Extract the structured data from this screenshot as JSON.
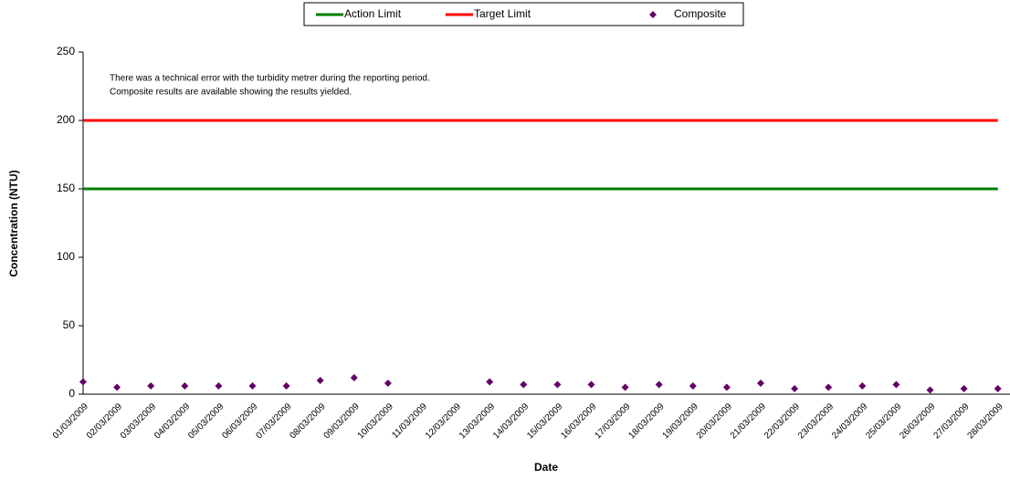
{
  "chart_data": {
    "type": "line",
    "annotation": [
      "There was a technical error with the turbidity metrer during the reporting period.",
      "Composite results are available showing the results yielded."
    ],
    "x_label": "Date",
    "y_label": "Concentration (NTU)",
    "categories": [
      "01/03/2009",
      "02/03/2009",
      "03/03/2009",
      "04/03/2009",
      "05/03/2009",
      "06/03/2009",
      "07/03/2009",
      "08/03/2009",
      "09/03/2009",
      "10/03/2009",
      "11/03/2009",
      "12/03/2009",
      "13/03/2009",
      "14/03/2009",
      "15/03/2009",
      "16/03/2009",
      "17/03/2009",
      "18/03/2009",
      "19/03/2009",
      "20/03/2009",
      "21/03/2009",
      "22/03/2009",
      "23/03/2009",
      "24/03/2009",
      "25/03/2009",
      "26/03/2009",
      "27/03/2009",
      "28/03/2009"
    ],
    "series": [
      {
        "name": "Action Limit",
        "type": "line",
        "color": "#008000",
        "values": [
          150,
          150,
          150,
          150,
          150,
          150,
          150,
          150,
          150,
          150,
          150,
          150,
          150,
          150,
          150,
          150,
          150,
          150,
          150,
          150,
          150,
          150,
          150,
          150,
          150,
          150,
          150,
          150
        ]
      },
      {
        "name": "Target Limit",
        "type": "line",
        "color": "#ff0000",
        "values": [
          200,
          200,
          200,
          200,
          200,
          200,
          200,
          200,
          200,
          200,
          200,
          200,
          200,
          200,
          200,
          200,
          200,
          200,
          200,
          200,
          200,
          200,
          200,
          200,
          200,
          200,
          200,
          200
        ]
      },
      {
        "name": "Composite",
        "type": "scatter",
        "color": "#660066",
        "values": [
          9,
          5,
          6,
          6,
          6,
          6,
          6,
          10,
          12,
          8,
          null,
          null,
          9,
          7,
          7,
          7,
          5,
          7,
          6,
          5,
          8,
          4,
          5,
          6,
          7,
          3,
          4,
          4
        ]
      }
    ],
    "ylim": [
      0,
      250
    ],
    "yticks": [
      0,
      50,
      100,
      150,
      200,
      250
    ],
    "legend": "top"
  }
}
